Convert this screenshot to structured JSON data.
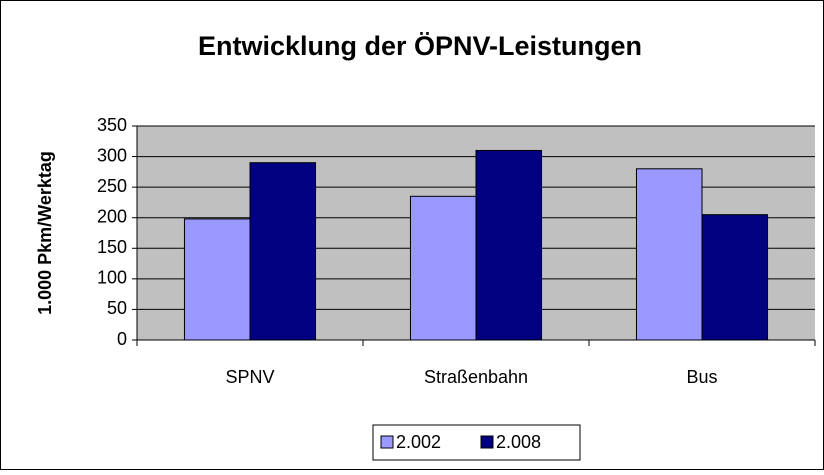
{
  "chart_data": {
    "type": "bar",
    "title": "Entwicklung der ÖPNV-Leistungen",
    "y_label": "1.000 Pkm/Werktag",
    "categories": [
      "SPNV",
      "Straßenbahn",
      "Bus"
    ],
    "series": [
      {
        "name": "2.002",
        "color": "#9999ff",
        "values": [
          198,
          235,
          280
        ]
      },
      {
        "name": "2.008",
        "color": "#000080",
        "values": [
          290,
          310,
          205
        ]
      }
    ],
    "ylim": [
      0,
      350
    ],
    "yticks": [
      0,
      50,
      100,
      150,
      200,
      250,
      300,
      350
    ],
    "grid": true,
    "legend": "bottom"
  }
}
